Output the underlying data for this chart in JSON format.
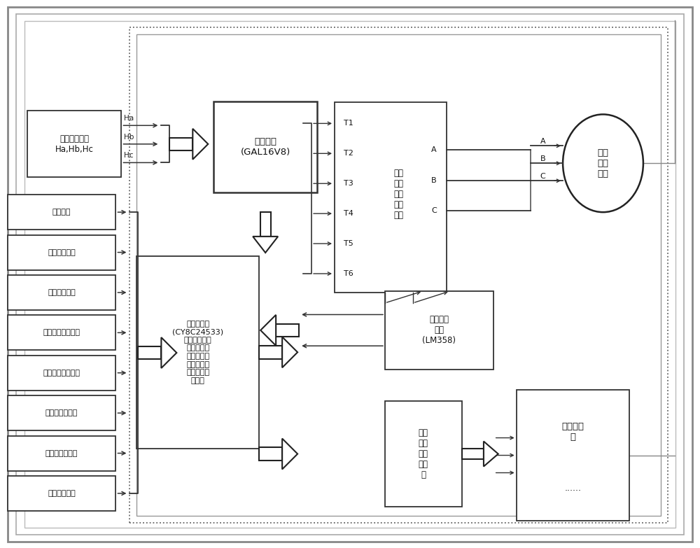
{
  "rotor_label": "转子位置信号\nHa,Hb,Hc",
  "decode_label": "译码单元\n(GAL16V8)",
  "cpu_label": "中央处理器\n(CY8C24533)\n（速度计算、\n电流计算、\n各类外部信\n号处理、控\n制各类驱动\n电路）",
  "drive_mid_label": "无刷\n直流\n电机\n驱动\n电路",
  "motor_label": "无刷\n直流\n电机",
  "current_label": "电流检测\n单元\n(LM358)",
  "other_drive_label": "其他\n执行\n器驱\n动电\n路",
  "other_exec_label": "其他执行\n器",
  "other_exec_dots": "......",
  "ha_label": "Ha",
  "hb_label": "Hb",
  "hc_label": "Hc",
  "abc_a": "A",
  "abc_b": "B",
  "abc_c": "C",
  "t_labels": [
    "T1",
    "T2",
    "T3",
    "T4",
    "T5",
    "T6"
  ],
  "input_signals": [
    "刹车信号",
    "电池电压信号",
    "调速转把信号",
    "自动模式选择信号",
    "手动模式选择信号",
    "低速档选择信号",
    "高速档选择信号",
    "其他外设信号"
  ]
}
